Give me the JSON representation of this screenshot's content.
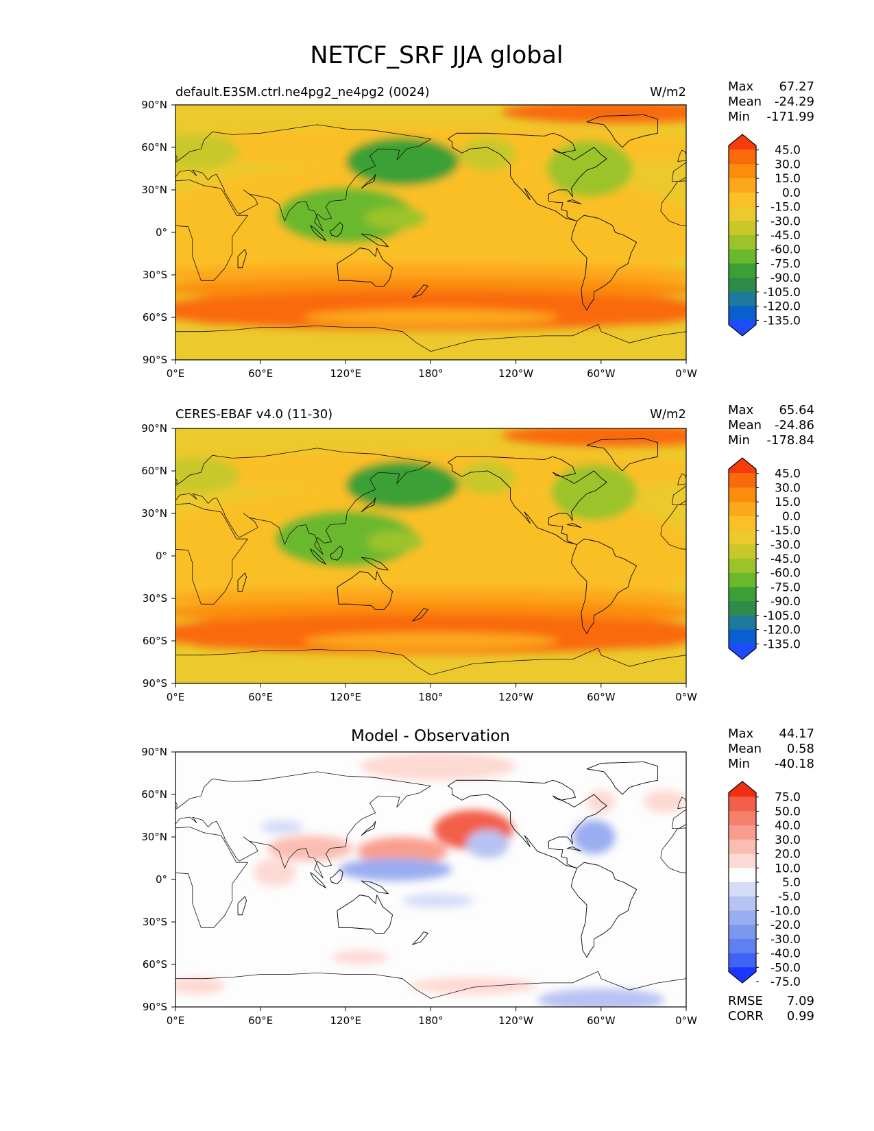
{
  "figure": {
    "title": "NETCF_SRF JJA global"
  },
  "colors": {
    "main_levels": [
      "#1f4bff",
      "#0a5fd0",
      "#1e7a9a",
      "#2e8b4a",
      "#3aa035",
      "#6ab82d",
      "#9cc32a",
      "#c8c82a",
      "#ecc92c",
      "#fbbf27",
      "#fca81c",
      "#fb8d0d",
      "#f96a0a",
      "#f83b0a"
    ],
    "diff_levels": [
      "#1c36ff",
      "#3f63f5",
      "#5e80f0",
      "#7b98ee",
      "#9aadf0",
      "#b7c3f3",
      "#d4dcf8",
      "#fdfdfd",
      "#fdd9d3",
      "#fbbdb2",
      "#f99e8e",
      "#f6806c",
      "#f25f4a",
      "#f22e12"
    ]
  },
  "panels": [
    {
      "left_title": "default.E3SM.ctrl.ne4pg2_ne4pg2 (0024)",
      "center_title": "",
      "units": "W/m2",
      "stats": [
        {
          "label": "Max",
          "value": "67.27"
        },
        {
          "label": "Mean",
          "value": "-24.29"
        },
        {
          "label": "Min",
          "value": "-171.99"
        }
      ],
      "extra_stats": [],
      "colorbar_ticks": [
        "45.0",
        "30.0",
        "15.0",
        "0.0",
        "-15.0",
        "-30.0",
        "-45.0",
        "-60.0",
        "-75.0",
        "-90.0",
        "-105.0",
        "-120.0",
        "-135.0"
      ]
    },
    {
      "left_title": "CERES-EBAF v4.0 (11-30)",
      "center_title": "",
      "units": "W/m2",
      "stats": [
        {
          "label": "Max",
          "value": "65.64"
        },
        {
          "label": "Mean",
          "value": "-24.86"
        },
        {
          "label": "Min",
          "value": "-178.84"
        }
      ],
      "extra_stats": [],
      "colorbar_ticks": [
        "45.0",
        "30.0",
        "15.0",
        "0.0",
        "-15.0",
        "-30.0",
        "-45.0",
        "-60.0",
        "-75.0",
        "-90.0",
        "-105.0",
        "-120.0",
        "-135.0"
      ]
    },
    {
      "left_title": "",
      "center_title": "Model - Observation",
      "units": "",
      "stats": [
        {
          "label": "Max",
          "value": "44.17"
        },
        {
          "label": "Mean",
          "value": "0.58"
        },
        {
          "label": "Min",
          "value": "-40.18"
        }
      ],
      "extra_stats": [
        {
          "label": "RMSE",
          "value": "7.09"
        },
        {
          "label": "CORR",
          "value": "0.99"
        }
      ],
      "colorbar_ticks": [
        "75.0",
        "50.0",
        "40.0",
        "30.0",
        "20.0",
        "10.0",
        "5.0",
        "-5.0",
        "-10.0",
        "-20.0",
        "-30.0",
        "-40.0",
        "-50.0",
        "-75.0"
      ]
    }
  ],
  "axes": {
    "x_ticks": [
      "0°E",
      "60°E",
      "120°E",
      "180°",
      "120°W",
      "60°W",
      "0°W"
    ],
    "y_ticks": [
      "90°N",
      "60°N",
      "30°N",
      "0°",
      "30°S",
      "60°S",
      "90°S"
    ]
  },
  "chart_data": [
    {
      "type": "heatmap",
      "title": "default.E3SM.ctrl.ne4pg2_ne4pg2 (0024)",
      "units": "W/m2",
      "x": [
        0,
        60,
        120,
        180,
        240,
        300,
        360
      ],
      "y": [
        90,
        60,
        30,
        0,
        -30,
        -60,
        -90
      ],
      "xlim": [
        0,
        360
      ],
      "ylim": [
        -90,
        90
      ],
      "contour_levels": [
        -135,
        -120,
        -105,
        -90,
        -75,
        -60,
        -45,
        -30,
        -15,
        0,
        15,
        30,
        45
      ],
      "background_value": -20,
      "features": [
        {
          "lon": 170,
          "lat": 0,
          "rlon": 200,
          "rlat": 50,
          "value": -2
        },
        {
          "lon": 180,
          "lat": 60,
          "rlon": 200,
          "rlat": 14,
          "value": -2
        },
        {
          "lon": 120,
          "lat": 12,
          "rlon": 48,
          "rlat": 20,
          "value": -72
        },
        {
          "lon": 160,
          "lat": 50,
          "rlon": 40,
          "rlat": 17,
          "value": -80
        },
        {
          "lon": 292,
          "lat": 45,
          "rlon": 30,
          "rlat": 20,
          "value": -55
        },
        {
          "lon": 15,
          "lat": 57,
          "rlon": 30,
          "rlat": 12,
          "value": -45
        },
        {
          "lon": 220,
          "lat": 55,
          "rlon": 20,
          "rlat": 12,
          "value": -42
        },
        {
          "lon": 115,
          "lat": 12,
          "rlon": 32,
          "rlat": 10,
          "value": -75
        },
        {
          "lon": 155,
          "lat": 10,
          "rlon": 22,
          "rlat": 8,
          "value": -60
        },
        {
          "lon": 180,
          "lat": -30,
          "rlon": 200,
          "rlat": 8,
          "value": 5
        },
        {
          "lon": 180,
          "lat": -40,
          "rlon": 200,
          "rlat": 8,
          "value": 15
        },
        {
          "lon": 180,
          "lat": -55,
          "rlon": 200,
          "rlat": 14,
          "value": 30
        },
        {
          "lon": 35,
          "lat": -55,
          "rlon": 35,
          "rlat": 10,
          "value": 40
        },
        {
          "lon": 325,
          "lat": -55,
          "rlon": 45,
          "rlat": 10,
          "value": 40
        },
        {
          "lon": 180,
          "lat": -60,
          "rlon": 90,
          "rlat": 6,
          "value": 10
        },
        {
          "lon": 310,
          "lat": 85,
          "rlon": 80,
          "rlat": 8,
          "value": 35
        }
      ]
    },
    {
      "type": "heatmap",
      "title": "CERES-EBAF v4.0 (11-30)",
      "units": "W/m2",
      "x": [
        0,
        60,
        120,
        180,
        240,
        300,
        360
      ],
      "y": [
        90,
        60,
        30,
        0,
        -30,
        -60,
        -90
      ],
      "xlim": [
        0,
        360
      ],
      "ylim": [
        -90,
        90
      ],
      "contour_levels": [
        -135,
        -120,
        -105,
        -90,
        -75,
        -60,
        -45,
        -30,
        -15,
        0,
        15,
        30,
        45
      ],
      "background_value": -20,
      "features": [
        {
          "lon": 170,
          "lat": 0,
          "rlon": 200,
          "rlat": 50,
          "value": -2
        },
        {
          "lon": 180,
          "lat": 60,
          "rlon": 200,
          "rlat": 14,
          "value": -2
        },
        {
          "lon": 120,
          "lat": 12,
          "rlon": 50,
          "rlat": 20,
          "value": -70
        },
        {
          "lon": 160,
          "lat": 50,
          "rlon": 40,
          "rlat": 17,
          "value": -80
        },
        {
          "lon": 295,
          "lat": 45,
          "rlon": 30,
          "rlat": 20,
          "value": -55
        },
        {
          "lon": 15,
          "lat": 57,
          "rlon": 30,
          "rlat": 12,
          "value": -45
        },
        {
          "lon": 220,
          "lat": 55,
          "rlon": 20,
          "rlat": 12,
          "value": -42
        },
        {
          "lon": 110,
          "lat": 12,
          "rlon": 34,
          "rlat": 10,
          "value": -75
        },
        {
          "lon": 155,
          "lat": 10,
          "rlon": 20,
          "rlat": 8,
          "value": -55
        },
        {
          "lon": 180,
          "lat": -30,
          "rlon": 200,
          "rlat": 8,
          "value": 5
        },
        {
          "lon": 180,
          "lat": -40,
          "rlon": 200,
          "rlat": 8,
          "value": 15
        },
        {
          "lon": 180,
          "lat": -55,
          "rlon": 200,
          "rlat": 14,
          "value": 30
        },
        {
          "lon": 35,
          "lat": -55,
          "rlon": 35,
          "rlat": 10,
          "value": 40
        },
        {
          "lon": 325,
          "lat": -55,
          "rlon": 45,
          "rlat": 10,
          "value": 40
        },
        {
          "lon": 180,
          "lat": -60,
          "rlon": 90,
          "rlat": 6,
          "value": 10
        },
        {
          "lon": 310,
          "lat": 85,
          "rlon": 80,
          "rlat": 8,
          "value": 35
        }
      ]
    },
    {
      "type": "heatmap",
      "title": "Model - Observation",
      "x": [
        0,
        60,
        120,
        180,
        240,
        300,
        360
      ],
      "y": [
        90,
        60,
        30,
        0,
        -30,
        -60,
        -90
      ],
      "xlim": [
        0,
        360
      ],
      "ylim": [
        -90,
        90
      ],
      "contour_levels": [
        -75,
        -50,
        -40,
        -30,
        -20,
        -10,
        -5,
        5,
        10,
        20,
        30,
        40,
        50,
        75
      ],
      "background_value": 0,
      "features": [
        {
          "lon": 210,
          "lat": 35,
          "rlon": 28,
          "rlat": 14,
          "value": 42
        },
        {
          "lon": 160,
          "lat": 20,
          "rlon": 32,
          "rlat": 10,
          "value": 25
        },
        {
          "lon": 95,
          "lat": 22,
          "rlon": 30,
          "rlat": 9,
          "value": 15
        },
        {
          "lon": 185,
          "lat": 80,
          "rlon": 55,
          "rlat": 10,
          "value": 7
        },
        {
          "lon": 300,
          "lat": 55,
          "rlon": 10,
          "rlat": 8,
          "value": 7
        },
        {
          "lon": 345,
          "lat": 55,
          "rlon": 15,
          "rlat": 8,
          "value": 7
        },
        {
          "lon": 70,
          "lat": 5,
          "rlon": 15,
          "rlat": 10,
          "value": 7
        },
        {
          "lon": 155,
          "lat": 7,
          "rlon": 40,
          "rlat": 8,
          "value": -25
        },
        {
          "lon": 295,
          "lat": 30,
          "rlon": 15,
          "rlat": 12,
          "value": -25
        },
        {
          "lon": 220,
          "lat": 25,
          "rlon": 15,
          "rlat": 10,
          "value": -12
        },
        {
          "lon": 75,
          "lat": 37,
          "rlon": 15,
          "rlat": 5,
          "value": -8
        },
        {
          "lon": 185,
          "lat": -15,
          "rlon": 25,
          "rlat": 5,
          "value": -8
        },
        {
          "lon": 300,
          "lat": -85,
          "rlon": 45,
          "rlat": 8,
          "value": -15
        },
        {
          "lon": 130,
          "lat": -55,
          "rlon": 20,
          "rlat": 5,
          "value": 7
        },
        {
          "lon": 15,
          "lat": -75,
          "rlon": 20,
          "rlat": 6,
          "value": 7
        },
        {
          "lon": 210,
          "lat": -75,
          "rlon": 45,
          "rlat": 6,
          "value": 7
        }
      ]
    }
  ]
}
